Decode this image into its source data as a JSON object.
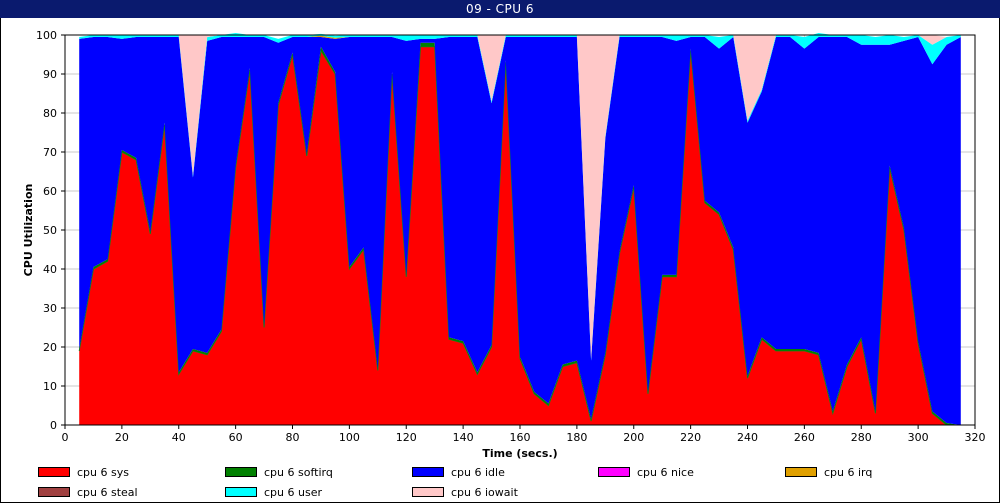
{
  "window": {
    "title": "09 - CPU 6"
  },
  "chart_data": {
    "type": "area",
    "stacked": true,
    "title": "09 - CPU 6",
    "xlabel": "Time (secs.)",
    "ylabel": "CPU Utilization",
    "xlim": [
      0,
      320
    ],
    "ylim": [
      0,
      100
    ],
    "x_ticks": [
      0,
      20,
      40,
      60,
      80,
      100,
      120,
      140,
      160,
      180,
      200,
      220,
      240,
      260,
      280,
      300,
      320
    ],
    "y_ticks": [
      0,
      10,
      20,
      30,
      40,
      50,
      60,
      70,
      80,
      90,
      100
    ],
    "grid": true,
    "legend_position": "bottom",
    "x": [
      5,
      10,
      15,
      20,
      25,
      30,
      35,
      40,
      45,
      50,
      55,
      60,
      65,
      70,
      75,
      80,
      85,
      90,
      95,
      100,
      105,
      110,
      115,
      120,
      125,
      130,
      135,
      140,
      145,
      150,
      155,
      160,
      165,
      170,
      175,
      180,
      185,
      190,
      195,
      200,
      205,
      210,
      215,
      220,
      225,
      230,
      235,
      240,
      245,
      250,
      255,
      260,
      265,
      270,
      275,
      280,
      285,
      290,
      295,
      300,
      305,
      310,
      315
    ],
    "series": [
      {
        "name": "cpu 6 sys",
        "color": "#ff0000",
        "values": [
          19,
          40,
          42,
          70,
          68,
          49,
          77,
          13,
          19,
          18,
          24,
          66,
          91,
          25,
          82,
          95,
          69,
          96,
          90,
          40,
          45,
          14,
          90,
          38,
          97,
          97,
          22,
          21,
          13,
          20,
          93,
          17,
          8,
          5,
          15,
          16,
          1,
          18,
          44,
          61,
          8,
          38,
          38,
          96,
          57,
          54,
          45,
          12,
          22,
          19,
          19,
          19,
          18,
          3,
          15,
          22,
          3,
          66,
          50,
          21,
          3,
          0,
          0
        ]
      },
      {
        "name": "cpu 6 softirq",
        "color": "#008000",
        "values": [
          0.5,
          0.5,
          0.5,
          0.5,
          0.5,
          0.5,
          0.5,
          0.5,
          0.5,
          0.5,
          0.5,
          0.5,
          0.5,
          0.5,
          0.5,
          0.5,
          0.5,
          1,
          0.5,
          0.5,
          0.5,
          0.5,
          0.5,
          0.5,
          1,
          1,
          0.5,
          0.5,
          0.5,
          0.5,
          0.5,
          0.5,
          0.5,
          0.5,
          0.5,
          0.5,
          0.5,
          0.5,
          0.5,
          0.5,
          0.5,
          0.5,
          0.5,
          0.5,
          0.5,
          0.5,
          0.5,
          0.5,
          0.5,
          0.5,
          0.5,
          0.5,
          0.5,
          0.5,
          0.5,
          0.5,
          0.5,
          0.5,
          0.5,
          0.5,
          0.5,
          0.5,
          0
        ]
      },
      {
        "name": "cpu 6 idle",
        "color": "#0000ff",
        "values": [
          79.5,
          59,
          57,
          28.5,
          31,
          50,
          22,
          86,
          44,
          80,
          75,
          33,
          8,
          74,
          15.5,
          4,
          30,
          2.5,
          8.5,
          59,
          54,
          85,
          9,
          60,
          1,
          1,
          77,
          78,
          86,
          62,
          6,
          82,
          91,
          94,
          84,
          83,
          15,
          55,
          55,
          38,
          91,
          61,
          60,
          3,
          42,
          42,
          54,
          65,
          63,
          80,
          80,
          77,
          81,
          96,
          84,
          75,
          94,
          31,
          48,
          78,
          89,
          97,
          99.5
        ]
      },
      {
        "name": "cpu 6 nice",
        "color": "#ff00ff",
        "values": [
          0,
          0,
          0,
          0,
          0,
          0,
          0,
          0,
          0,
          0,
          0,
          0,
          0,
          0,
          0,
          0,
          0,
          0,
          0,
          0,
          0,
          0,
          0,
          0,
          0,
          0,
          0,
          0,
          0,
          0,
          0,
          0,
          0,
          0,
          0,
          0,
          0,
          0,
          0,
          0,
          0,
          0,
          0,
          0,
          0,
          0,
          0,
          0,
          0,
          0,
          0,
          0,
          0,
          0,
          0,
          0,
          0,
          0,
          0,
          0,
          0,
          0,
          0
        ]
      },
      {
        "name": "cpu 6 irq",
        "color": "#e0a000",
        "values": [
          0,
          0,
          0,
          0,
          0,
          0,
          0,
          0,
          0,
          0,
          0,
          0,
          0,
          0,
          0,
          0,
          0,
          0.3,
          0.3,
          0,
          0,
          0,
          0,
          0,
          0,
          0,
          0,
          0,
          0,
          0,
          0,
          0,
          0,
          0,
          0,
          0,
          0,
          0,
          0,
          0,
          0,
          0,
          0,
          0,
          0,
          0,
          0,
          0,
          0,
          0,
          0,
          0,
          0,
          0,
          0,
          0,
          0,
          0,
          0,
          0,
          0,
          0,
          0
        ]
      },
      {
        "name": "cpu 6 steal",
        "color": "#a04040",
        "values": [
          0,
          0,
          0,
          0,
          0,
          0,
          0,
          0,
          0,
          0,
          0,
          0,
          0,
          0,
          0,
          0,
          0,
          0,
          0,
          0,
          0,
          0,
          0,
          0,
          0,
          0,
          0,
          0,
          0,
          0,
          0,
          0,
          0,
          0,
          0,
          0,
          0,
          0,
          0,
          0,
          0,
          0,
          0,
          0,
          0,
          0,
          0,
          0,
          0,
          0,
          0,
          0,
          0,
          0,
          0,
          0,
          0,
          0,
          0,
          0,
          0,
          0,
          0
        ]
      },
      {
        "name": "cpu 6 user",
        "color": "#00ffff",
        "values": [
          0.5,
          0.5,
          0.5,
          1,
          0.5,
          0.5,
          0.5,
          0.5,
          0.5,
          1,
          0.5,
          1,
          0.5,
          0.5,
          1,
          0.5,
          0.5,
          0.5,
          0.5,
          0.5,
          0.5,
          0.5,
          0.5,
          1.5,
          1,
          1,
          0.5,
          0.5,
          0.5,
          0.5,
          0.5,
          0.5,
          0.5,
          0.5,
          0.5,
          0.5,
          0.5,
          0.5,
          0.5,
          0.5,
          0.5,
          0.5,
          1.5,
          0.5,
          0.5,
          3,
          0.5,
          0.5,
          0.5,
          0.5,
          0.5,
          3,
          1,
          0.5,
          0.5,
          2.5,
          2,
          2.5,
          1,
          0.5,
          5,
          2,
          0.5
        ]
      },
      {
        "name": "cpu 6 iowait",
        "color": "#ffc8c8",
        "values": [
          0,
          0,
          0,
          0,
          0,
          0,
          0,
          0,
          36,
          0.5,
          0,
          0,
          0,
          0,
          0,
          0,
          0,
          0,
          0,
          0,
          0,
          0,
          0,
          0,
          0,
          0,
          0,
          0,
          0,
          17,
          0,
          0,
          0,
          0,
          0,
          0,
          83,
          26,
          0,
          0,
          0,
          0,
          0,
          0,
          0,
          0,
          0,
          22,
          14,
          0,
          0,
          0,
          0,
          0,
          0,
          0,
          0,
          0,
          0,
          0,
          2.5,
          0,
          0
        ]
      }
    ]
  }
}
